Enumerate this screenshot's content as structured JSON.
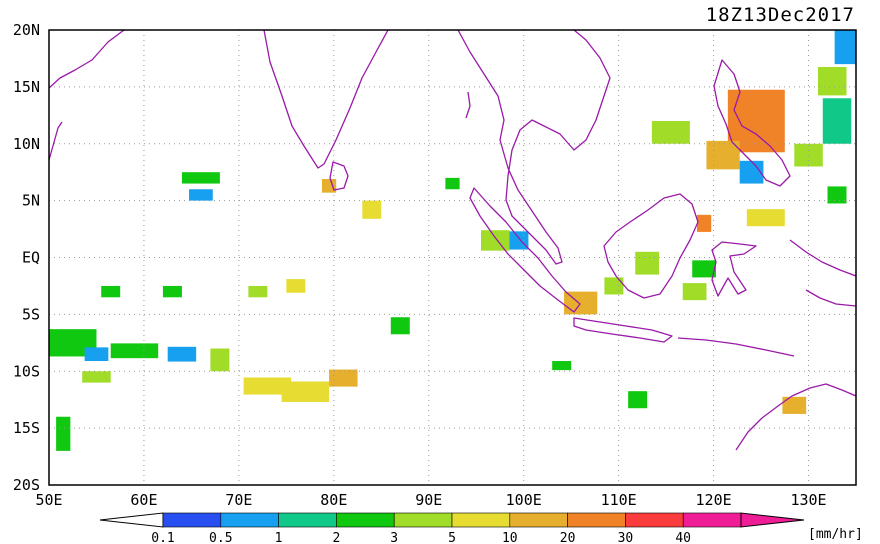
{
  "title": "18Z13Dec2017",
  "units_label": "[mm/hr]",
  "map": {
    "lon_range": [
      50,
      135
    ],
    "lat_range": [
      -20,
      20
    ],
    "lon_ticks": [
      {
        "value": 50,
        "label": "50E"
      },
      {
        "value": 60,
        "label": "60E"
      },
      {
        "value": 70,
        "label": "70E"
      },
      {
        "value": 80,
        "label": "80E"
      },
      {
        "value": 90,
        "label": "90E"
      },
      {
        "value": 100,
        "label": "100E"
      },
      {
        "value": 110,
        "label": "110E"
      },
      {
        "value": 120,
        "label": "120E"
      },
      {
        "value": 130,
        "label": "130E"
      }
    ],
    "lat_ticks": [
      {
        "value": 20,
        "label": "20N"
      },
      {
        "value": 15,
        "label": "15N"
      },
      {
        "value": 10,
        "label": "10N"
      },
      {
        "value": 5,
        "label": "5N"
      },
      {
        "value": 0,
        "label": "EQ"
      },
      {
        "value": -5,
        "label": "5S"
      },
      {
        "value": -10,
        "label": "10S"
      },
      {
        "value": -15,
        "label": "15S"
      },
      {
        "value": -20,
        "label": "20S"
      }
    ],
    "grid": true,
    "coastline_color": "#9a1aa8"
  },
  "colorbar": {
    "labels": [
      "0.1",
      "0.5",
      "1",
      "2",
      "3",
      "5",
      "10",
      "20",
      "30",
      "40"
    ],
    "colors": [
      "#2850f0",
      "#18a0f0",
      "#10c888",
      "#10c810",
      "#a0dc28",
      "#e6dc32",
      "#e6af2d",
      "#f08228",
      "#fa3c3c",
      "#f01e96"
    ],
    "under_color": "#ffffff",
    "over_color": "#f01e96"
  },
  "rain_cells": [
    {
      "lon": 52.5,
      "lat": -7.5,
      "w": 5,
      "h": 2.4,
      "level": 3
    },
    {
      "lon": 55,
      "lat": -8.5,
      "w": 2.5,
      "h": 1.2,
      "level": 1
    },
    {
      "lon": 59,
      "lat": -8.2,
      "w": 5,
      "h": 1.3,
      "level": 3
    },
    {
      "lon": 64,
      "lat": -8.5,
      "w": 3,
      "h": 1.3,
      "level": 1
    },
    {
      "lon": 68,
      "lat": -9,
      "w": 2,
      "h": 2,
      "level": 4
    },
    {
      "lon": 73,
      "lat": -11.3,
      "w": 5,
      "h": 1.5,
      "level": 5
    },
    {
      "lon": 77,
      "lat": -11.8,
      "w": 5,
      "h": 1.8,
      "level": 5
    },
    {
      "lon": 81,
      "lat": -10.6,
      "w": 3,
      "h": 1.5,
      "level": 6
    },
    {
      "lon": 66,
      "lat": 7,
      "w": 4,
      "h": 1,
      "level": 3
    },
    {
      "lon": 66,
      "lat": 5.5,
      "w": 2.5,
      "h": 1,
      "level": 1
    },
    {
      "lon": 79.5,
      "lat": 6.3,
      "w": 1.5,
      "h": 1.2,
      "level": 6
    },
    {
      "lon": 84,
      "lat": 4.2,
      "w": 2,
      "h": 1.6,
      "level": 5
    },
    {
      "lon": 97,
      "lat": 1.5,
      "w": 3,
      "h": 1.8,
      "level": 4
    },
    {
      "lon": 99.5,
      "lat": 1.5,
      "w": 2,
      "h": 1.6,
      "level": 1
    },
    {
      "lon": 106,
      "lat": -4,
      "w": 3.5,
      "h": 2,
      "level": 6
    },
    {
      "lon": 109.5,
      "lat": -2.5,
      "w": 2,
      "h": 1.5,
      "level": 4
    },
    {
      "lon": 113,
      "lat": -0.5,
      "w": 2.5,
      "h": 2,
      "level": 4
    },
    {
      "lon": 119,
      "lat": -1,
      "w": 2.5,
      "h": 1.5,
      "level": 3
    },
    {
      "lon": 124.5,
      "lat": 12,
      "w": 6,
      "h": 5.5,
      "level": 7
    },
    {
      "lon": 121,
      "lat": 9,
      "w": 3.5,
      "h": 2.5,
      "level": 6
    },
    {
      "lon": 124,
      "lat": 7.5,
      "w": 2.5,
      "h": 2,
      "level": 1
    },
    {
      "lon": 130,
      "lat": 9,
      "w": 3,
      "h": 2,
      "level": 4
    },
    {
      "lon": 133,
      "lat": 12,
      "w": 3,
      "h": 4,
      "level": 2
    },
    {
      "lon": 134,
      "lat": 18.5,
      "w": 2.5,
      "h": 3,
      "level": 1
    },
    {
      "lon": 132.5,
      "lat": 15.5,
      "w": 3,
      "h": 2.5,
      "level": 4
    },
    {
      "lon": 125.5,
      "lat": 3.5,
      "w": 4,
      "h": 1.5,
      "level": 5
    },
    {
      "lon": 119,
      "lat": 3,
      "w": 1.5,
      "h": 1.5,
      "level": 7
    },
    {
      "lon": 115.5,
      "lat": 11,
      "w": 4,
      "h": 2,
      "level": 4
    },
    {
      "lon": 133,
      "lat": 5.5,
      "w": 2,
      "h": 1.5,
      "level": 3
    },
    {
      "lon": 128.5,
      "lat": -13,
      "w": 2.5,
      "h": 1.5,
      "level": 6
    },
    {
      "lon": 112,
      "lat": -12.5,
      "w": 2,
      "h": 1.5,
      "level": 3
    },
    {
      "lon": 51.5,
      "lat": -15.5,
      "w": 1.5,
      "h": 3,
      "level": 3
    },
    {
      "lon": 56.5,
      "lat": -3,
      "w": 2,
      "h": 1,
      "level": 3
    },
    {
      "lon": 63,
      "lat": -3,
      "w": 2,
      "h": 1,
      "level": 3
    },
    {
      "lon": 72,
      "lat": -3,
      "w": 2,
      "h": 1,
      "level": 4
    },
    {
      "lon": 76,
      "lat": -2.5,
      "w": 2,
      "h": 1.2,
      "level": 5
    },
    {
      "lon": 87,
      "lat": -6,
      "w": 2,
      "h": 1.5,
      "level": 3
    },
    {
      "lon": 92.5,
      "lat": 6.5,
      "w": 1.5,
      "h": 1,
      "level": 3
    },
    {
      "lon": 118,
      "lat": -3,
      "w": 2.5,
      "h": 1.5,
      "level": 4
    },
    {
      "lon": 104,
      "lat": -9.5,
      "w": 2,
      "h": 0.8,
      "level": 3
    },
    {
      "lon": 55,
      "lat": -10.5,
      "w": 3,
      "h": 1,
      "level": 4
    }
  ]
}
